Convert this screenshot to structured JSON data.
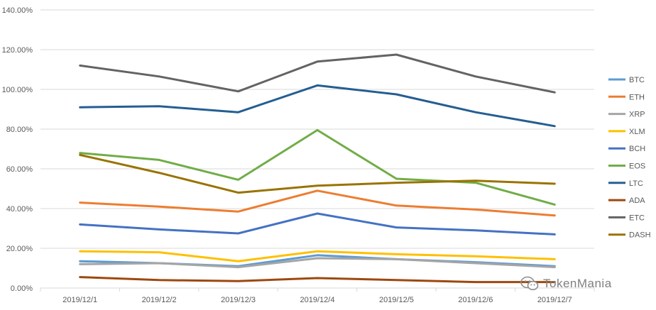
{
  "watermark": {
    "text": "TokenMania",
    "icon": "wechat-icon"
  },
  "chart_data": {
    "type": "line",
    "title": "",
    "xlabel": "",
    "ylabel": "",
    "categories": [
      "2019/12/1",
      "2019/12/2",
      "2019/12/3",
      "2019/12/4",
      "2019/12/5",
      "2019/12/6",
      "2019/12/7"
    ],
    "y_ticks": [
      "0.00%",
      "20.00%",
      "40.00%",
      "60.00%",
      "80.00%",
      "100.00%",
      "120.00%",
      "140.00%"
    ],
    "ylim": [
      0,
      140
    ],
    "grid": true,
    "legend_position": "right",
    "series": [
      {
        "name": "BTC",
        "color": "#5b9bd5",
        "values": [
          13.5,
          12.5,
          11.0,
          16.5,
          14.5,
          13.0,
          11.0
        ]
      },
      {
        "name": "ETH",
        "color": "#ed7d31",
        "values": [
          43.0,
          41.0,
          38.5,
          49.0,
          41.5,
          39.5,
          36.5
        ]
      },
      {
        "name": "XRP",
        "color": "#a5a5a5",
        "values": [
          12.0,
          12.5,
          10.5,
          15.0,
          14.5,
          12.5,
          10.5
        ]
      },
      {
        "name": "XLM",
        "color": "#ffc000",
        "values": [
          18.5,
          18.0,
          13.5,
          18.5,
          17.0,
          16.0,
          14.5
        ]
      },
      {
        "name": "BCH",
        "color": "#4472c4",
        "values": [
          32.0,
          29.5,
          27.5,
          37.5,
          30.5,
          29.0,
          27.0
        ]
      },
      {
        "name": "EOS",
        "color": "#70ad47",
        "values": [
          68.0,
          64.5,
          54.5,
          79.5,
          55.0,
          53.0,
          42.0
        ]
      },
      {
        "name": "LTC",
        "color": "#255e91",
        "values": [
          91.0,
          91.5,
          88.5,
          102.0,
          97.5,
          88.5,
          81.5
        ]
      },
      {
        "name": "ADA",
        "color": "#9e480e",
        "values": [
          5.5,
          4.0,
          3.5,
          5.0,
          4.0,
          3.0,
          3.0
        ]
      },
      {
        "name": "ETC",
        "color": "#636363",
        "values": [
          112.0,
          106.5,
          99.0,
          114.0,
          117.5,
          106.5,
          98.5
        ]
      },
      {
        "name": "DASH",
        "color": "#997300",
        "values": [
          67.0,
          58.0,
          48.0,
          51.5,
          53.0,
          54.0,
          52.5
        ]
      }
    ]
  }
}
